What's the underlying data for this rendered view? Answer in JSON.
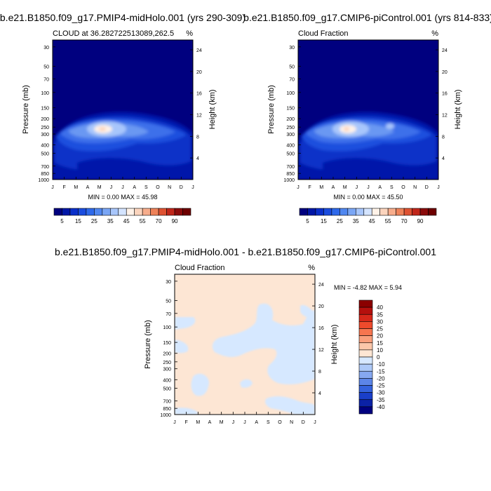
{
  "chart_data": [
    {
      "type": "heatmap",
      "title": "b.e21.B1850.f09_g17.PMIP4-midHolo.001 (yrs 290-309)",
      "subtitle": "CLOUD at 36.282722513089,262.5",
      "units": "%",
      "ylabel": "Pressure (mb)",
      "ylabel_right": "Height (km)",
      "x_ticks": [
        "J",
        "F",
        "M",
        "A",
        "M",
        "J",
        "J",
        "A",
        "S",
        "O",
        "N",
        "D",
        "J"
      ],
      "y_ticks": [
        30,
        50,
        70,
        100,
        150,
        200,
        250,
        300,
        400,
        500,
        700,
        850,
        1000
      ],
      "y_right_ticks": [
        24,
        20,
        16,
        12,
        8,
        4
      ],
      "minmax": "MIN =   0.00 MAX =  45.98",
      "min": 0.0,
      "max": 45.98,
      "peak": {
        "month": 4.9,
        "pressure": 250,
        "value": 45.98
      }
    },
    {
      "type": "heatmap",
      "title": "b.e21.B1850.f09_g17.CMIP6-piControl.001 (yrs 814-833)",
      "subtitle": "Cloud Fraction",
      "units": "%",
      "ylabel": "Pressure (mb)",
      "ylabel_right": "Height (km)",
      "x_ticks": [
        "J",
        "F",
        "M",
        "A",
        "M",
        "J",
        "J",
        "A",
        "S",
        "O",
        "N",
        "D",
        "J"
      ],
      "y_ticks": [
        30,
        50,
        70,
        100,
        150,
        200,
        250,
        300,
        400,
        500,
        700,
        850,
        1000
      ],
      "y_right_ticks": [
        24,
        20,
        16,
        12,
        8,
        4
      ],
      "minmax": "MIN =   0.00 MAX =  45.50",
      "min": 0.0,
      "max": 45.5,
      "peak": {
        "month": 4.8,
        "pressure": 250,
        "value": 45.5
      }
    },
    {
      "type": "heatmap",
      "title": "b.e21.B1850.f09_g17.PMIP4-midHolo.001 - b.e21.B1850.f09_g17.CMIP6-piControl.001",
      "subtitle": "Cloud Fraction",
      "units": "%",
      "ylabel": "Pressure (mb)",
      "ylabel_right": "Height (km)",
      "x_ticks": [
        "J",
        "F",
        "M",
        "A",
        "M",
        "J",
        "J",
        "A",
        "S",
        "O",
        "N",
        "D",
        "J"
      ],
      "y_ticks": [
        30,
        50,
        70,
        100,
        150,
        200,
        250,
        300,
        400,
        500,
        700,
        850,
        1000
      ],
      "y_right_ticks": [
        24,
        20,
        16,
        12,
        8,
        4
      ],
      "minmax": "MIN =  -4.82 MAX =   5.94",
      "min": -4.82,
      "max": 5.94
    }
  ],
  "colorbar_abs": {
    "labels": [
      "5",
      "15",
      "25",
      "35",
      "45",
      "55",
      "70",
      "90"
    ],
    "levels": [
      0,
      5,
      10,
      15,
      20,
      25,
      30,
      35,
      40,
      45,
      50,
      55,
      60,
      70,
      80,
      90
    ],
    "colors": [
      "#00007f",
      "#0016a6",
      "#0a2fc9",
      "#1a4cde",
      "#2e69ea",
      "#5087f0",
      "#7aa6f5",
      "#a8c6fb",
      "#d4e4ff",
      "#fff2e8",
      "#fbd4bd",
      "#f7ad8c",
      "#ee8259",
      "#de5232",
      "#c0261a",
      "#8b0b0b",
      "#6e0000"
    ]
  },
  "colorbar_diff": {
    "labels": [
      "40",
      "35",
      "30",
      "25",
      "20",
      "15",
      "10",
      "0",
      "-10",
      "-15",
      "-20",
      "-25",
      "-30",
      "-35",
      "-40"
    ],
    "colors": [
      "#8b0000",
      "#b5100d",
      "#d7281a",
      "#ee4a2c",
      "#f6754f",
      "#f99f7c",
      "#fcc7aa",
      "#fde6d4",
      "#d6e8ff",
      "#adc9f8",
      "#86a8f1",
      "#5c85e8",
      "#3462dd",
      "#1a3fc9",
      "#0b22a6",
      "#00007f"
    ]
  }
}
